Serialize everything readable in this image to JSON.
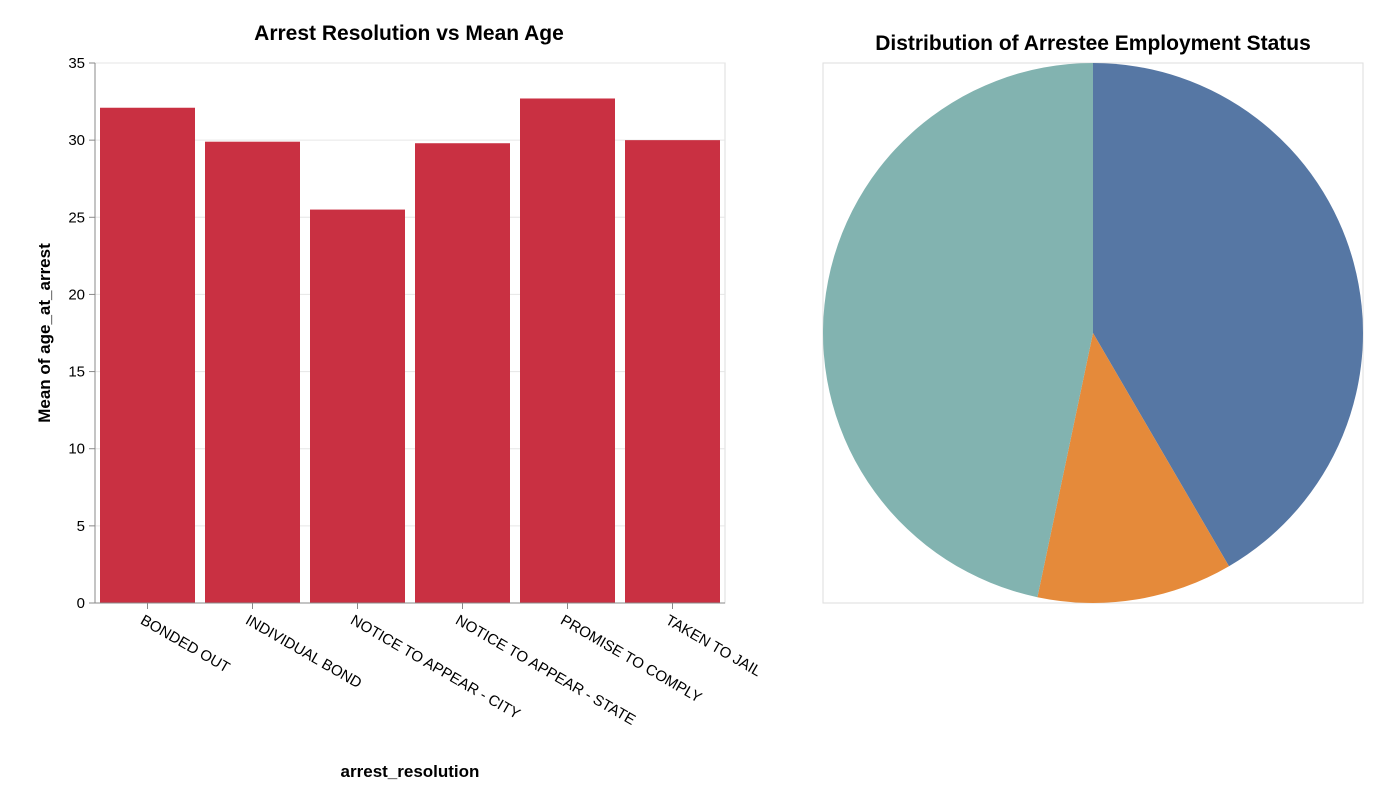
{
  "chart_data": [
    {
      "type": "bar",
      "title": "Arrest Resolution vs Mean Age",
      "xlabel": "arrest_resolution",
      "ylabel": "Mean of age_at_arrest",
      "categories": [
        "BONDED OUT",
        "INDIVIDUAL BOND",
        "NOTICE TO APPEAR - CITY",
        "NOTICE TO APPEAR - STATE",
        "PROMISE TO COMPLY",
        "TAKEN TO JAIL"
      ],
      "values": [
        32.1,
        29.9,
        25.5,
        29.8,
        32.7,
        30.0
      ],
      "ylim": [
        0,
        35
      ],
      "yticks": [
        0,
        5,
        10,
        15,
        20,
        25,
        30,
        35
      ],
      "grid": true,
      "color": "#c93042"
    },
    {
      "type": "pie",
      "title": "Distribution of Arrestee Employment Status",
      "values": [
        41.6,
        11.7,
        46.7
      ],
      "colors": [
        "#5677a4",
        "#e58a3a",
        "#82b3b0"
      ],
      "legend": "none"
    }
  ]
}
